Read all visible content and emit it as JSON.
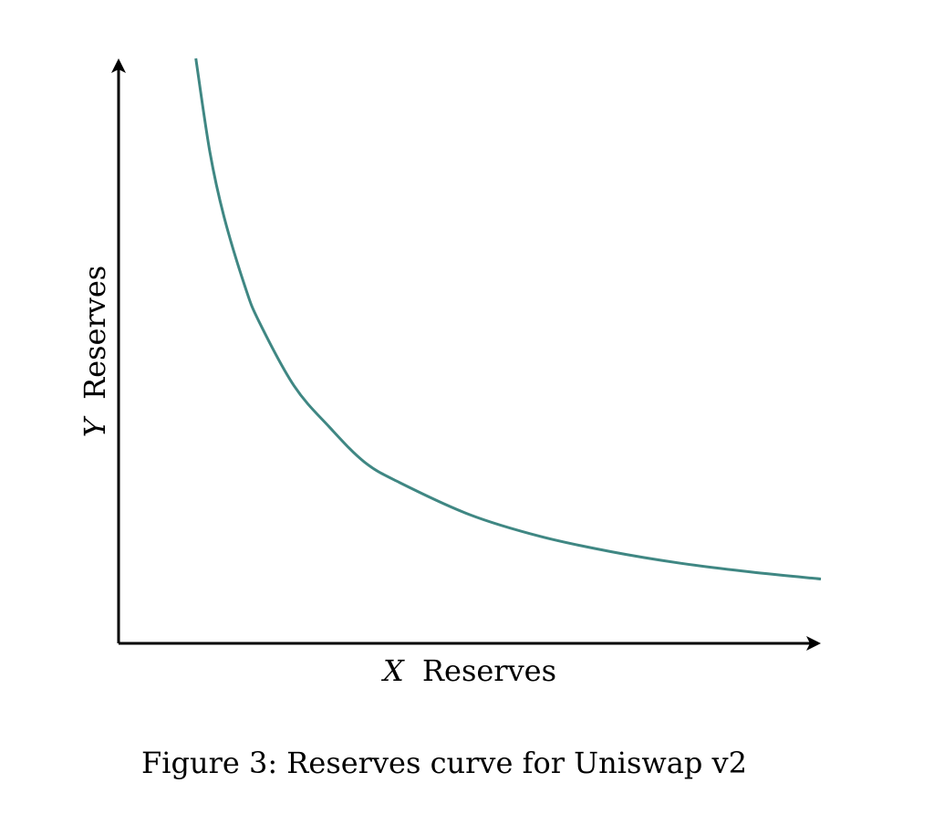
{
  "chart_data": {
    "type": "line",
    "caption": "Figure 3: Reserves curve for Uniswap v2",
    "xlabel": {
      "var": "X",
      "text": "Reserves"
    },
    "ylabel": {
      "var": "Y",
      "text": "Reserves"
    },
    "grid": false,
    "legend": "none",
    "curve_color": "#3f8783",
    "axis_color": "#000000",
    "xlim": [
      0,
      10
    ],
    "ylim": [
      0,
      10
    ],
    "series": [
      {
        "values_x": [
          1.1,
          1.3,
          1.5,
          1.8,
          2.0,
          2.5,
          3.0,
          3.5,
          4.0,
          5.0,
          6.0,
          7.0,
          8.0,
          9.0,
          10.0
        ],
        "values_y": [
          10.0,
          8.4,
          7.3,
          6.1,
          5.5,
          4.4,
          3.7,
          3.1,
          2.75,
          2.2,
          1.83,
          1.57,
          1.37,
          1.22,
          1.1
        ]
      }
    ]
  }
}
